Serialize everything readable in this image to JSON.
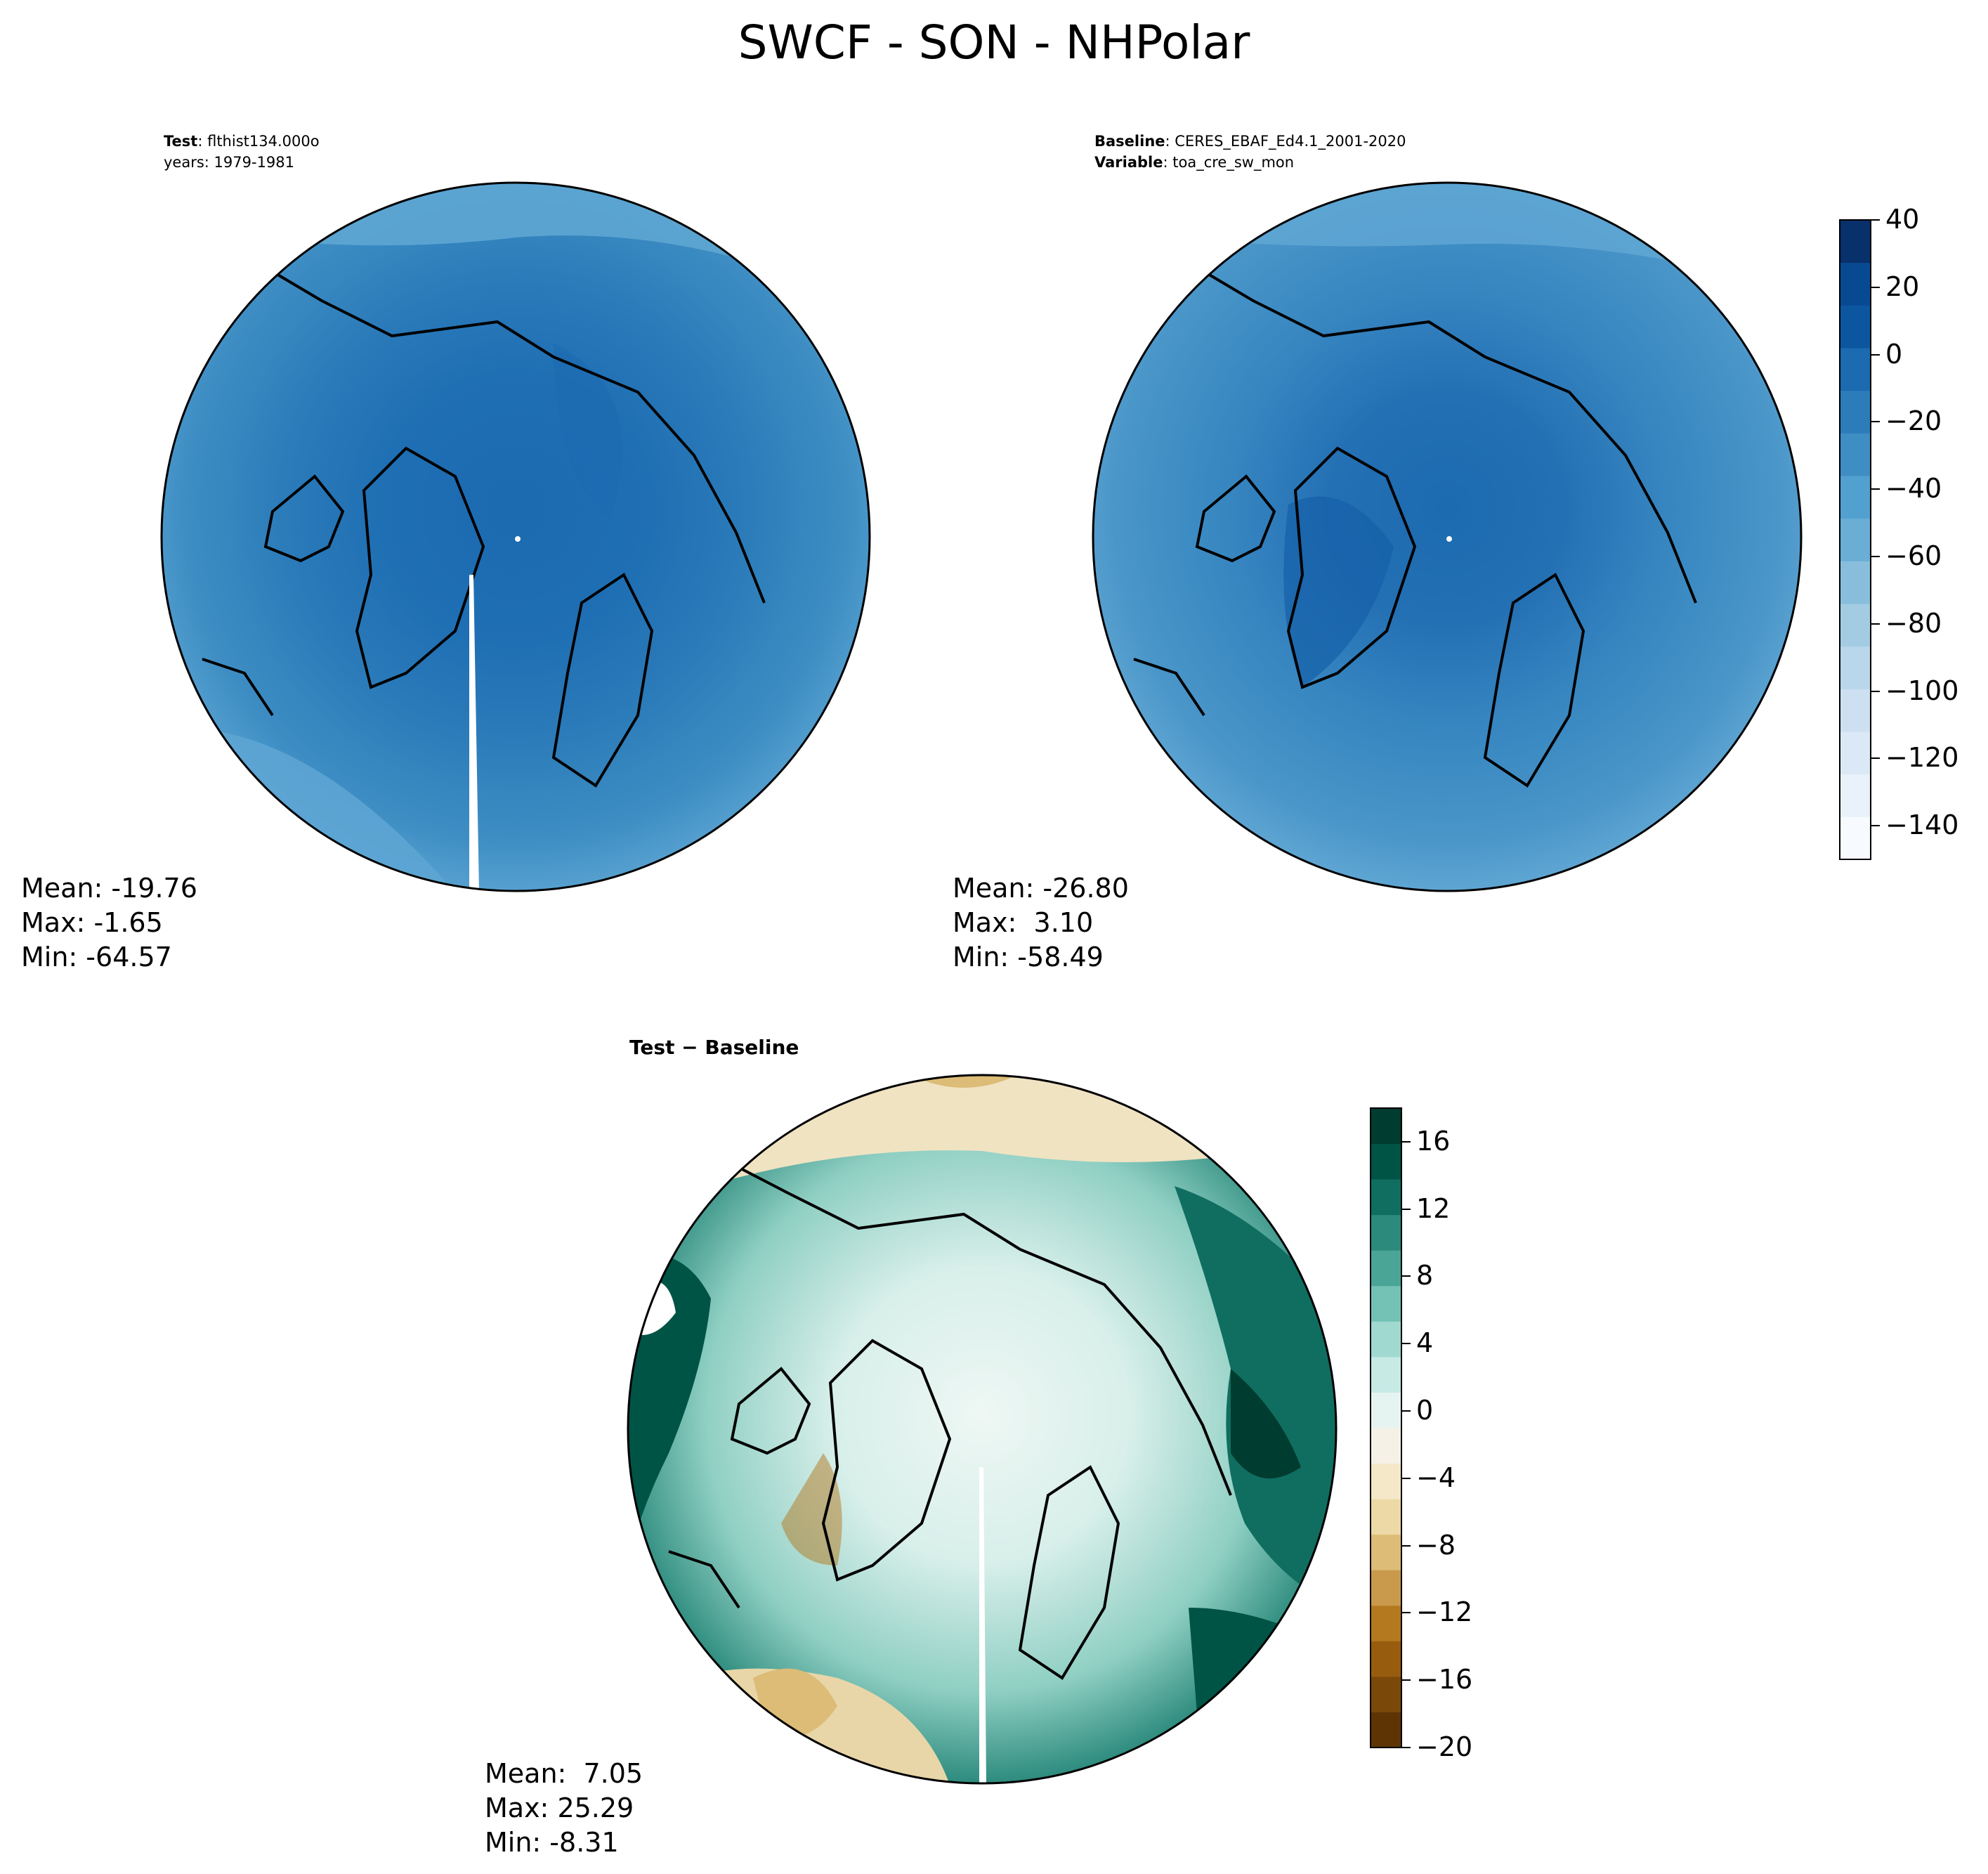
{
  "title": "SWCF - SON - NHPolar",
  "panels": [
    {
      "id": "test",
      "header": [
        {
          "key": "Test",
          "value": "flthist134.000o"
        },
        {
          "key": "",
          "value": "years: 1979-1981"
        }
      ],
      "stats": {
        "mean": "Mean: -19.76",
        "max": "Max: -1.65",
        "min": "Min: -64.57"
      },
      "color_scale": "Blues"
    },
    {
      "id": "baseline",
      "header": [
        {
          "key": "Baseline",
          "value": "CERES_EBAF_Ed4.1_2001-2020"
        },
        {
          "key": "Variable",
          "value": "toa_cre_sw_mon"
        }
      ],
      "stats": {
        "mean": "Mean: -26.80",
        "max": "Max:  3.10",
        "min": "Min: -58.49"
      },
      "color_scale": "Blues"
    },
    {
      "id": "difference",
      "header_title": "Test − Baseline",
      "stats": {
        "mean": "Mean:  7.05",
        "max": "Max: 25.29",
        "min": "Min: -8.31"
      },
      "color_scale": "BrBG"
    }
  ],
  "colorbar_main": {
    "range": [
      -150,
      40
    ],
    "ticks": [
      "40",
      "20",
      "0",
      "−20",
      "−40",
      "−60",
      "−80",
      "−100",
      "−120",
      "−140"
    ],
    "colors": [
      "#f7fbff",
      "#e9f2fb",
      "#dbe9f6",
      "#cde0f1",
      "#bad6eb",
      "#a3cce3",
      "#88bedc",
      "#6aaed6",
      "#52a0cf",
      "#3e8ec4",
      "#2c7cba",
      "#1c6ab0",
      "#0c56a0",
      "#084a91",
      "#08306b"
    ]
  },
  "colorbar_diff": {
    "range": [
      -20,
      18
    ],
    "ticks": [
      "16",
      "12",
      "8",
      "4",
      "0",
      "−4",
      "−8",
      "−12",
      "−16",
      "−20"
    ],
    "colors": [
      "#5e3405",
      "#7a4809",
      "#985c0f",
      "#b4781f",
      "#c99a4c",
      "#dcbc76",
      "#ecd9a5",
      "#f4e8c8",
      "#f5f1e6",
      "#e6f4f1",
      "#c7eae5",
      "#a0d9d0",
      "#74c2b5",
      "#4aa596",
      "#2b8a7c",
      "#106e60",
      "#005446",
      "#003c30"
    ]
  }
}
